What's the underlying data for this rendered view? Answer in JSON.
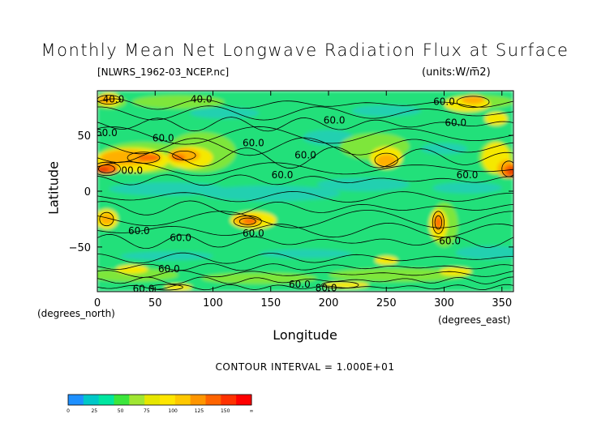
{
  "chart_data": {
    "type": "heatmap",
    "title": "Monthly Mean Net Longwave Radiation Flux at Surface",
    "file_label": "[NLWRS_1962-03_NCEP.nc]",
    "units_label": "(units:W/m^2)",
    "xlabel": "Longitude",
    "ylabel": "Latitude",
    "x_unit_label": "(degrees_east)",
    "y_unit_label": "(degrees_north)",
    "contour_interval_label": "CONTOUR INTERVAL = 1.000E+01",
    "xlim": [
      0,
      360
    ],
    "ylim": [
      -90,
      90
    ],
    "x_ticks": [
      0,
      50,
      100,
      150,
      200,
      250,
      300,
      350
    ],
    "y_ticks": [
      50,
      0,
      -50
    ],
    "contour_labels": [
      {
        "text": "40.0",
        "lon": 14,
        "lat": 82
      },
      {
        "text": "40.0",
        "lon": 90,
        "lat": 82
      },
      {
        "text": "60.0",
        "lon": 8,
        "lat": 52
      },
      {
        "text": "60.0",
        "lon": 57,
        "lat": 47
      },
      {
        "text": "60.0",
        "lon": 135,
        "lat": 43
      },
      {
        "text": "60.0",
        "lon": 180,
        "lat": 32
      },
      {
        "text": "60.0",
        "lon": 205,
        "lat": 63
      },
      {
        "text": "60.0",
        "lon": 300,
        "lat": 80
      },
      {
        "text": "60.0",
        "lon": 310,
        "lat": 61
      },
      {
        "text": "00.0",
        "lon": 30,
        "lat": 18
      },
      {
        "text": "60.0",
        "lon": 160,
        "lat": 14
      },
      {
        "text": "60.0",
        "lon": 320,
        "lat": 14
      },
      {
        "text": "60.0",
        "lon": 36,
        "lat": -36
      },
      {
        "text": "60.0",
        "lon": 72,
        "lat": -42
      },
      {
        "text": "60.0",
        "lon": 135,
        "lat": -38
      },
      {
        "text": "60.0",
        "lon": 305,
        "lat": -45
      },
      {
        "text": "60.0",
        "lon": 62,
        "lat": -70
      },
      {
        "text": "60.0",
        "lon": 40,
        "lat": -88
      },
      {
        "text": "60.0",
        "lon": 175,
        "lat": -84
      },
      {
        "text": "80.0",
        "lon": 198,
        "lat": -87
      }
    ],
    "colorbar": {
      "labels": [
        "0",
        "25",
        "50",
        "75",
        "100",
        "125",
        "150",
        "∞"
      ],
      "colors": [
        "#1e90ff",
        "#00c8c8",
        "#00e6a0",
        "#3ce63c",
        "#a0e632",
        "#e6e600",
        "#ffe600",
        "#ffc800",
        "#ff9600",
        "#ff6400",
        "#ff3200",
        "#ff0000"
      ]
    },
    "legend_placement": "bottom-left"
  },
  "field_palette": {
    "low": "#20d0b0",
    "base": "#22e07a",
    "mid": "#7ee63a",
    "high": "#f5e800",
    "higher": "#ffb000",
    "hot": "#ff7000",
    "hottest": "#e84000"
  }
}
